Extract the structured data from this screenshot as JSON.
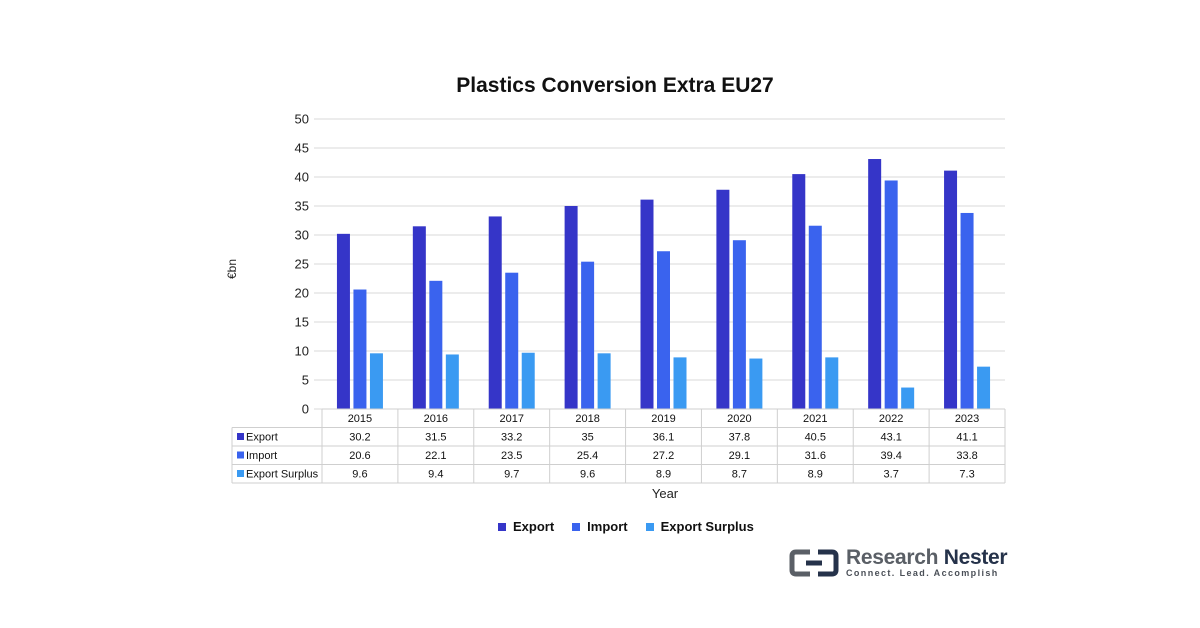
{
  "chart_data": {
    "type": "bar",
    "title": "Plastics Conversion Extra EU27",
    "xlabel": "Year",
    "ylabel": "€bn",
    "ylim": [
      0,
      50
    ],
    "yticks": [
      0,
      5,
      10,
      15,
      20,
      25,
      30,
      35,
      40,
      45,
      50
    ],
    "grid": true,
    "legend_position": "bottom",
    "data_table": true,
    "categories": [
      "2015",
      "2016",
      "2017",
      "2018",
      "2019",
      "2020",
      "2021",
      "2022",
      "2023"
    ],
    "series": [
      {
        "name": "Export",
        "color": "#3535c8",
        "values": [
          30.2,
          31.5,
          33.2,
          35,
          36.1,
          37.8,
          40.5,
          43.1,
          41.1
        ]
      },
      {
        "name": "Import",
        "color": "#3a63ee",
        "values": [
          20.6,
          22.1,
          23.5,
          25.4,
          27.2,
          29.1,
          31.6,
          39.4,
          33.8
        ]
      },
      {
        "name": "Export Surplus",
        "color": "#3a9af2",
        "values": [
          9.6,
          9.4,
          9.7,
          9.6,
          8.9,
          8.7,
          8.9,
          3.7,
          7.3
        ]
      }
    ]
  },
  "brand": {
    "name_part1": "Research",
    "name_part2": "Nester",
    "tagline": "Connect. Lead. Accomplish",
    "logo_icon": "research-nester-logo-icon"
  }
}
